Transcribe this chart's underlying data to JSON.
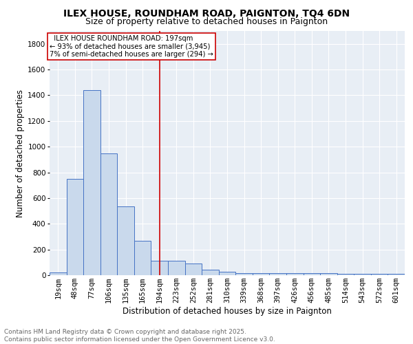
{
  "title1": "ILEX HOUSE, ROUNDHAM ROAD, PAIGNTON, TQ4 6DN",
  "title2": "Size of property relative to detached houses in Paignton",
  "xlabel": "Distribution of detached houses by size in Paignton",
  "ylabel": "Number of detached properties",
  "bins": [
    "19sqm",
    "48sqm",
    "77sqm",
    "106sqm",
    "135sqm",
    "165sqm",
    "194sqm",
    "223sqm",
    "252sqm",
    "281sqm",
    "310sqm",
    "339sqm",
    "368sqm",
    "397sqm",
    "426sqm",
    "456sqm",
    "485sqm",
    "514sqm",
    "543sqm",
    "572sqm",
    "601sqm"
  ],
  "values": [
    20,
    750,
    1440,
    950,
    535,
    270,
    115,
    110,
    90,
    45,
    25,
    15,
    15,
    15,
    15,
    15,
    15,
    10,
    10,
    10,
    10
  ],
  "bar_color": "#c9d9ec",
  "bar_edge_color": "#4472c4",
  "vline_x_index": 6,
  "vline_color": "#cc0000",
  "annotation_text": "  ILEX HOUSE ROUNDHAM ROAD: 197sqm\n← 93% of detached houses are smaller (3,945)\n7% of semi-detached houses are larger (294) →",
  "annotation_box_color": "#ffffff",
  "annotation_box_edge_color": "#cc0000",
  "ylim": [
    0,
    1900
  ],
  "background_color": "#e8eef5",
  "footer_text": "Contains HM Land Registry data © Crown copyright and database right 2025.\nContains public sector information licensed under the Open Government Licence v3.0.",
  "title_fontsize": 10,
  "subtitle_fontsize": 9,
  "tick_fontsize": 7.5,
  "ylabel_fontsize": 8.5,
  "xlabel_fontsize": 8.5,
  "footer_fontsize": 6.5
}
